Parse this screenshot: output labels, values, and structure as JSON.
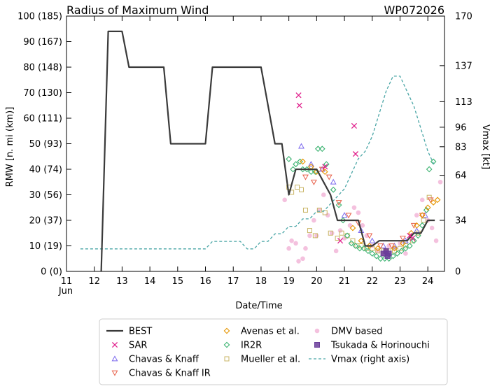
{
  "chart_data": {
    "type": "line",
    "title": "Radius of Maximum Wind",
    "storm_id": "WP072026",
    "xlabel": "Date/Time",
    "ylabel": "RMW [n. mi (km)]",
    "y2label": "Vmax [kt]",
    "x_month": "Jun",
    "xlim": [
      11,
      24.6
    ],
    "ylim": [
      0,
      100
    ],
    "y2lim": [
      0,
      170
    ],
    "x_ticks": [
      "11",
      "12",
      "13",
      "14",
      "15",
      "16",
      "17",
      "18",
      "19",
      "20",
      "21",
      "22",
      "23",
      "24"
    ],
    "y_ticks": [
      {
        "value": 0,
        "label": "0 (0)"
      },
      {
        "value": 10,
        "label": "10 (19)"
      },
      {
        "value": 20,
        "label": "20 (37)"
      },
      {
        "value": 30,
        "label": "30 (56)"
      },
      {
        "value": 40,
        "label": "40 (74)"
      },
      {
        "value": 50,
        "label": "50 (93)"
      },
      {
        "value": 60,
        "label": "60 (111)"
      },
      {
        "value": 70,
        "label": "70 (130)"
      },
      {
        "value": 80,
        "label": "80 (148)"
      },
      {
        "value": 90,
        "label": "90 (167)"
      },
      {
        "value": 100,
        "label": "100 (185)"
      }
    ],
    "y2_ticks": [
      {
        "value": 0,
        "label": "0"
      },
      {
        "value": 34,
        "label": "34"
      },
      {
        "value": 64,
        "label": "64"
      },
      {
        "value": 83,
        "label": "83"
      },
      {
        "value": 96,
        "label": "96"
      },
      {
        "value": 113,
        "label": "113"
      },
      {
        "value": 137,
        "label": "137"
      },
      {
        "value": 170,
        "label": "170"
      }
    ],
    "legend": {
      "columns": [
        [
          "BEST",
          "SAR",
          "Chavas & Knaff",
          "Chavas & Knaff IR"
        ],
        [
          "Avenas et al.",
          "IR2R",
          "Mueller et al."
        ],
        [
          "DMV based",
          "Tsukada & Horinouchi",
          "Vmax (right axis)"
        ]
      ]
    },
    "colors": {
      "best": "#3a3a3a",
      "sar": "#e0208c",
      "chavas_knaff": "#7b68ee",
      "chavas_knaff_ir": "#e8604a",
      "avenas": "#e69500",
      "ir2r": "#3cb371",
      "mueller": "#c8b464",
      "dmv": "#f2b6d8",
      "tsukada": "#6a3d9a",
      "vmax": "#4aa6a6"
    },
    "series": [
      {
        "name": "BEST",
        "kind": "line",
        "x": [
          12.25,
          12.25,
          12.5,
          12.75,
          13.0,
          13.25,
          13.5,
          13.75,
          14.0,
          14.25,
          14.5,
          14.75,
          15.0,
          15.25,
          15.5,
          15.75,
          16.0,
          16.25,
          16.5,
          16.75,
          17.0,
          17.25,
          17.5,
          17.75,
          18.0,
          18.25,
          18.5,
          18.75,
          19.0,
          19.25,
          19.5,
          19.75,
          20.0,
          20.25,
          20.5,
          20.75,
          21.0,
          21.25,
          21.5,
          21.75,
          22.0,
          22.25,
          22.5,
          22.75,
          23.0,
          23.25,
          23.5,
          23.75,
          24.0,
          24.25
        ],
        "y": [
          0,
          0,
          94,
          94,
          94,
          80,
          80,
          80,
          80,
          80,
          80,
          50,
          50,
          50,
          50,
          50,
          50,
          80,
          80,
          80,
          80,
          80,
          80,
          80,
          80,
          65,
          50,
          50,
          30,
          40,
          40,
          40,
          40,
          35,
          30,
          20,
          20,
          20,
          20,
          10,
          10,
          12,
          12,
          12,
          12,
          12,
          15,
          15,
          20,
          20
        ]
      },
      {
        "name": "Vmax (right axis)",
        "kind": "line",
        "axis": "right",
        "x": [
          11.5,
          12.0,
          12.5,
          13.0,
          13.5,
          14.0,
          14.5,
          15.0,
          15.5,
          16.0,
          16.25,
          16.5,
          17.0,
          17.25,
          17.5,
          17.75,
          18.0,
          18.25,
          18.5,
          18.75,
          19.0,
          19.25,
          19.5,
          19.75,
          20.0,
          20.25,
          20.5,
          20.75,
          21.0,
          21.25,
          21.5,
          21.75,
          22.0,
          22.25,
          22.5,
          22.75,
          23.0,
          23.25,
          23.5,
          23.75,
          24.0,
          24.25
        ],
        "y": [
          15,
          15,
          15,
          15,
          15,
          15,
          15,
          15,
          15,
          15,
          20,
          20,
          20,
          20,
          15,
          15,
          20,
          20,
          25,
          25,
          30,
          30,
          35,
          35,
          40,
          40,
          45,
          50,
          55,
          65,
          75,
          80,
          90,
          105,
          120,
          130,
          130,
          120,
          110,
          95,
          80,
          70
        ]
      },
      {
        "name": "SAR",
        "kind": "scatter",
        "marker": "x",
        "x": [
          19.35,
          19.38,
          21.35,
          21.4,
          23.35,
          23.45,
          20.85,
          20.3
        ],
        "y": [
          69,
          65,
          57,
          46,
          14,
          13,
          12,
          41
        ]
      },
      {
        "name": "Chavas & Knaff",
        "kind": "scatter",
        "marker": "triangle-up",
        "x": [
          19.45,
          19.8,
          20.2,
          20.6,
          21.0,
          21.6,
          22.0,
          22.4,
          22.8,
          23.2,
          23.6,
          23.9
        ],
        "y": [
          49,
          42,
          40,
          35,
          22,
          16,
          12,
          10,
          10,
          12,
          16,
          22
        ]
      },
      {
        "name": "Chavas & Knaff IR",
        "kind": "scatter",
        "marker": "triangle-down",
        "x": [
          19.6,
          19.9,
          20.2,
          20.45,
          20.8,
          21.15,
          21.5,
          21.9,
          22.3,
          22.7,
          23.1,
          23.5,
          23.8,
          24.1
        ],
        "y": [
          37,
          35,
          40,
          37,
          27,
          22,
          19,
          14,
          10,
          10,
          13,
          18,
          22,
          28
        ]
      },
      {
        "name": "Avenas et al.",
        "kind": "scatter",
        "marker": "diamond",
        "x": [
          19.5,
          19.8,
          20.0,
          20.3,
          21.3,
          21.6,
          21.9,
          22.2,
          22.5,
          22.8,
          23.1,
          23.4,
          23.6,
          23.8,
          24.0,
          24.2,
          24.35
        ],
        "y": [
          43,
          41,
          39,
          39,
          17,
          12,
          10,
          9,
          8,
          9,
          11,
          15,
          18,
          22,
          25,
          27,
          28
        ]
      },
      {
        "name": "IR2R",
        "kind": "scatter",
        "marker": "diamond",
        "x": [
          19.0,
          19.15,
          19.25,
          19.4,
          19.5,
          19.65,
          19.8,
          19.95,
          20.05,
          20.2,
          20.35,
          20.6,
          20.8,
          20.95,
          21.1,
          21.25,
          21.4,
          21.55,
          21.7,
          21.85,
          22.0,
          22.15,
          22.3,
          22.45,
          22.6,
          22.75,
          22.9,
          23.05,
          23.2,
          23.35,
          23.5,
          23.65,
          23.8,
          23.95,
          24.05,
          24.2
        ],
        "y": [
          44,
          40,
          42,
          43,
          40,
          40,
          39,
          39,
          48,
          48,
          42,
          32,
          26,
          20,
          14,
          11,
          10,
          9,
          9,
          8,
          7,
          6,
          5,
          5,
          5,
          6,
          7,
          8,
          9,
          10,
          12,
          14,
          18,
          24,
          40,
          43
        ]
      },
      {
        "name": "Mueller et al.",
        "kind": "scatter",
        "marker": "square",
        "x": [
          19.0,
          19.1,
          19.3,
          19.45,
          19.6,
          19.75,
          19.95,
          20.1,
          20.3,
          20.5,
          20.75,
          20.9,
          21.1,
          21.3,
          21.45,
          21.6,
          21.8,
          22.0,
          22.2,
          22.4,
          22.6,
          22.8,
          23.0,
          23.2,
          23.45,
          23.65,
          23.85,
          24.05
        ],
        "y": [
          33,
          31,
          33,
          32,
          24,
          16,
          14,
          24,
          23,
          15,
          13,
          15,
          14,
          12,
          10,
          10,
          9,
          9,
          8,
          8,
          8,
          8,
          9,
          10,
          12,
          15,
          20,
          29
        ]
      },
      {
        "name": "DMV based",
        "kind": "scatter",
        "marker": "circle",
        "x": [
          18.85,
          19.0,
          19.1,
          19.25,
          19.35,
          19.5,
          19.6,
          19.75,
          19.9,
          20.0,
          20.1,
          20.25,
          20.4,
          20.55,
          20.7,
          20.85,
          21.0,
          21.2,
          21.35,
          21.5,
          21.65,
          21.8,
          22.0,
          22.2,
          22.4,
          22.6,
          22.8,
          23.0,
          23.2,
          23.4,
          23.6,
          23.8,
          24.0,
          24.15,
          24.3,
          24.45
        ],
        "y": [
          28,
          9,
          12,
          11,
          4,
          5,
          9,
          14,
          20,
          14,
          24,
          30,
          22,
          15,
          8,
          16,
          13,
          18,
          25,
          23,
          18,
          14,
          10,
          8,
          7,
          10,
          9,
          11,
          7,
          14,
          22,
          28,
          20,
          17,
          12,
          35
        ]
      },
      {
        "name": "Tsukada & Horinouchi",
        "kind": "scatter",
        "marker": "filled-square",
        "x": [
          22.4,
          22.5,
          22.6,
          22.55
        ],
        "y": [
          7,
          8,
          7,
          6
        ]
      }
    ]
  }
}
